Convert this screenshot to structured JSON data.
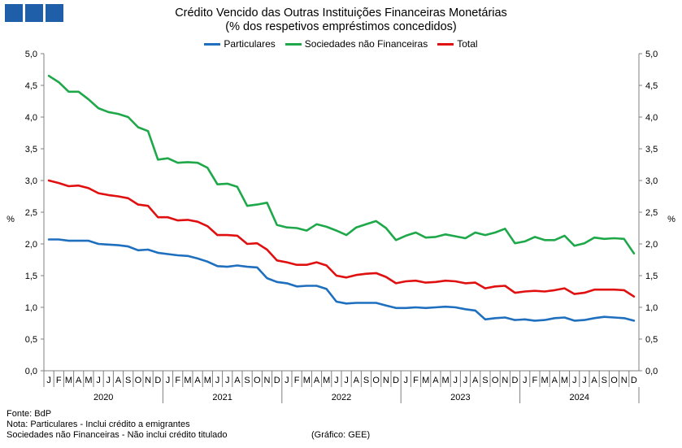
{
  "logo": {
    "icon": "bdp-logo-icon",
    "color": "#1f5ea8"
  },
  "chart_data": {
    "type": "line",
    "title": "Crédito Vencido das Outras Instituições Financeiras Monetárias",
    "subtitle": "(% dos respetivos empréstimos concedidos)",
    "ylabel_left": "%",
    "ylabel_right": "%",
    "ylim": [
      0,
      5
    ],
    "yticks": [
      "0,0",
      "0,5",
      "1,0",
      "1,5",
      "2,0",
      "2,5",
      "3,0",
      "3,5",
      "4,0",
      "4,5",
      "5,0"
    ],
    "month_labels": [
      "J",
      "F",
      "M",
      "A",
      "M",
      "J",
      "J",
      "A",
      "S",
      "O",
      "N",
      "D"
    ],
    "years": [
      "2020",
      "2021",
      "2022",
      "2023",
      "2024"
    ],
    "legend_position": "top-center",
    "grid": false,
    "series": [
      {
        "name": "Particulares",
        "color": "#1f6fbf",
        "values": [
          2.07,
          2.07,
          2.05,
          2.05,
          2.05,
          2.0,
          1.99,
          1.98,
          1.96,
          1.9,
          1.91,
          1.86,
          1.84,
          1.82,
          1.81,
          1.77,
          1.72,
          1.65,
          1.64,
          1.66,
          1.64,
          1.63,
          1.46,
          1.4,
          1.38,
          1.33,
          1.34,
          1.34,
          1.29,
          1.09,
          1.06,
          1.07,
          1.07,
          1.07,
          1.03,
          0.99,
          0.99,
          1.0,
          0.99,
          1.0,
          1.01,
          1.0,
          0.97,
          0.95,
          0.81,
          0.83,
          0.84,
          0.8,
          0.81,
          0.79,
          0.8,
          0.83,
          0.84,
          0.79,
          0.8,
          0.83,
          0.85,
          0.84,
          0.83,
          0.79
        ]
      },
      {
        "name": "Sociedades não Financeiras",
        "color": "#1ea84a",
        "values": [
          4.65,
          4.55,
          4.4,
          4.4,
          4.28,
          4.14,
          4.08,
          4.05,
          4.0,
          3.84,
          3.78,
          3.33,
          3.35,
          3.28,
          3.29,
          3.28,
          3.2,
          2.94,
          2.95,
          2.9,
          2.6,
          2.62,
          2.65,
          2.3,
          2.26,
          2.25,
          2.21,
          2.31,
          2.27,
          2.21,
          2.14,
          2.26,
          2.31,
          2.36,
          2.25,
          2.06,
          2.13,
          2.18,
          2.1,
          2.11,
          2.15,
          2.12,
          2.09,
          2.18,
          2.14,
          2.18,
          2.24,
          2.01,
          2.04,
          2.11,
          2.06,
          2.06,
          2.13,
          1.97,
          2.01,
          2.1,
          2.08,
          2.09,
          2.08,
          1.85
        ]
      },
      {
        "name": "Total",
        "color": "#e01010",
        "values": [
          3.0,
          2.96,
          2.91,
          2.92,
          2.88,
          2.8,
          2.77,
          2.75,
          2.72,
          2.62,
          2.6,
          2.42,
          2.42,
          2.37,
          2.38,
          2.35,
          2.28,
          2.14,
          2.14,
          2.13,
          2.0,
          2.01,
          1.91,
          1.74,
          1.71,
          1.67,
          1.67,
          1.71,
          1.66,
          1.5,
          1.47,
          1.51,
          1.53,
          1.54,
          1.48,
          1.38,
          1.41,
          1.42,
          1.39,
          1.4,
          1.42,
          1.41,
          1.38,
          1.39,
          1.3,
          1.33,
          1.34,
          1.23,
          1.25,
          1.26,
          1.25,
          1.27,
          1.3,
          1.21,
          1.23,
          1.28,
          1.28,
          1.28,
          1.27,
          1.17
        ]
      }
    ]
  },
  "footer": {
    "source": "Fonte: BdP",
    "note1": "Nota: Particulares - Inclui crédito a emigrantes",
    "note2": "Sociedades não Financeiras - Não inclui crédito titulado",
    "credit": "(Gráfico: GEE)"
  }
}
